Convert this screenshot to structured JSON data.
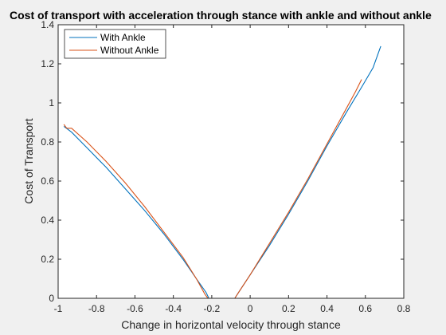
{
  "chart_data": {
    "type": "line",
    "title": "Cost of transport with acceleration through stance with ankle and without ankle",
    "xlabel": "Change in horizontal velocity through stance",
    "ylabel": "Cost of Transport",
    "xlim": [
      -1,
      0.8
    ],
    "ylim": [
      0,
      1.4
    ],
    "xticks": [
      -1,
      -0.8,
      -0.6,
      -0.4,
      -0.2,
      0,
      0.2,
      0.4,
      0.6,
      0.8
    ],
    "xtick_labels": [
      "-1",
      "-0.8",
      "-0.6",
      "-0.4",
      "-0.2",
      "0",
      "0.2",
      "0.4",
      "0.6",
      "0.8"
    ],
    "yticks": [
      0,
      0.2,
      0.4,
      0.6,
      0.8,
      1,
      1.2,
      1.4
    ],
    "ytick_labels": [
      "0",
      "0.2",
      "0.4",
      "0.6",
      "0.8",
      "1",
      "1.2",
      "1.4"
    ],
    "grid": false,
    "legend_position": "top-left",
    "series": [
      {
        "name": "With Ankle",
        "color": "#0072bd",
        "x": [
          -0.97,
          -0.93,
          -0.85,
          -0.75,
          -0.65,
          -0.55,
          -0.45,
          -0.35,
          -0.28,
          -0.23,
          -0.215,
          -0.2,
          -0.1,
          -0.08,
          -0.06,
          0.0,
          0.1,
          0.2,
          0.3,
          0.4,
          0.5,
          0.58,
          0.64,
          0.68
        ],
        "y": [
          0.88,
          0.85,
          0.77,
          0.67,
          0.56,
          0.45,
          0.33,
          0.2,
          0.1,
          0.03,
          0.0,
          0.0,
          0.0,
          0.0,
          0.03,
          0.12,
          0.27,
          0.43,
          0.6,
          0.78,
          0.95,
          1.08,
          1.18,
          1.29
        ]
      },
      {
        "name": "Without Ankle",
        "color": "#d95319",
        "x": [
          -0.97,
          -0.955,
          -0.93,
          -0.85,
          -0.75,
          -0.65,
          -0.55,
          -0.45,
          -0.35,
          -0.28,
          -0.235,
          -0.22,
          -0.1,
          -0.08,
          -0.06,
          0.0,
          0.1,
          0.2,
          0.3,
          0.4,
          0.5,
          0.55,
          0.58
        ],
        "y": [
          0.89,
          0.87,
          0.87,
          0.8,
          0.7,
          0.59,
          0.47,
          0.34,
          0.21,
          0.1,
          0.02,
          0.0,
          0.0,
          0.0,
          0.03,
          0.12,
          0.28,
          0.44,
          0.61,
          0.79,
          0.97,
          1.06,
          1.12
        ]
      }
    ]
  }
}
